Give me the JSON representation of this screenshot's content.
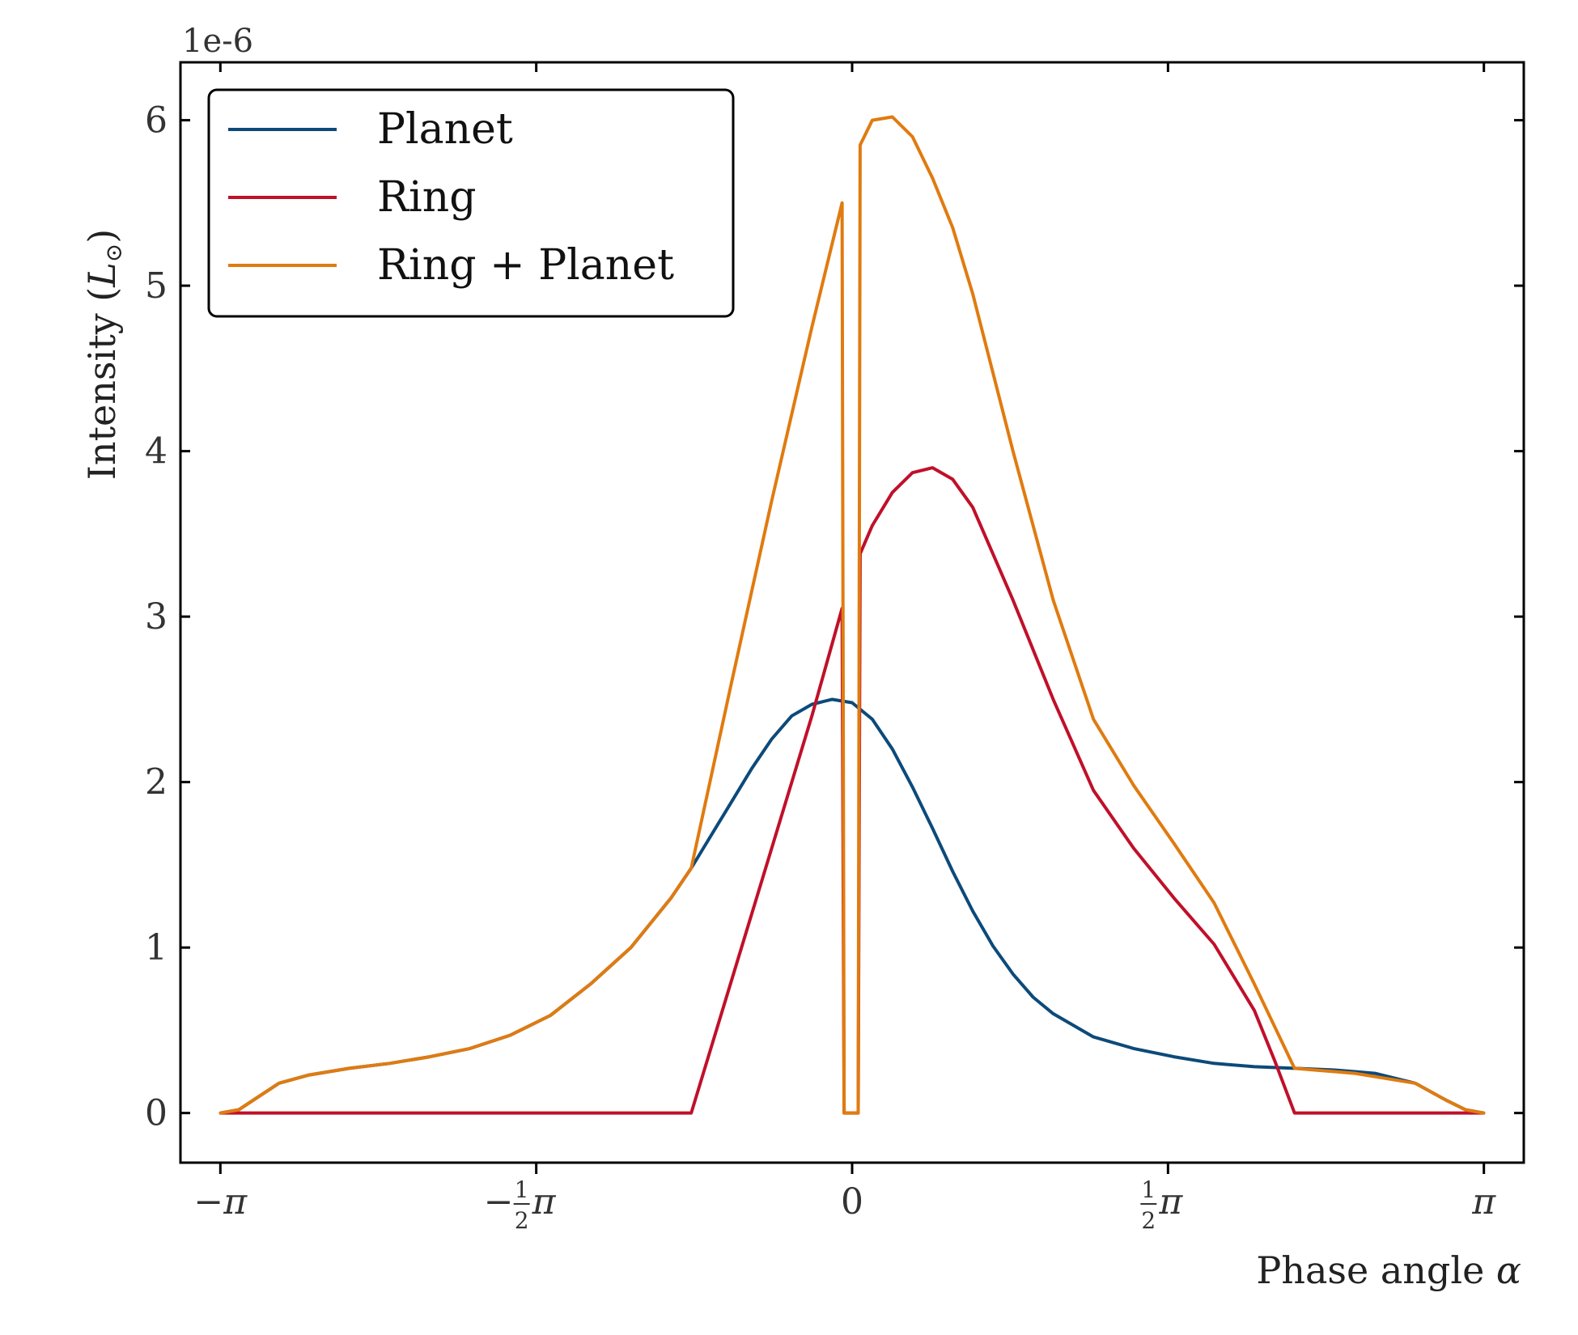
{
  "chart_data": {
    "type": "line",
    "xlabel": "Phase angle",
    "xlabel_symbol": "α",
    "ylabel": "Intensity",
    "ylabel_unit_symbol": "L",
    "ylabel_unit_subscript": "⊙",
    "y_offset_label": "1e-6",
    "xlim": [
      -3.34,
      3.34
    ],
    "ylim": [
      -0.3,
      6.35
    ],
    "grid": false,
    "legend_position": "top-left",
    "yticks": [
      0,
      1,
      2,
      3,
      4,
      5,
      6
    ],
    "xticks": [
      {
        "value": -3.14159,
        "sign": "−",
        "frac": "",
        "sym": "π"
      },
      {
        "value": -1.5708,
        "sign": "−",
        "frac": "1/2",
        "sym": "π"
      },
      {
        "value": 0,
        "sign": "",
        "frac": "",
        "sym": "0"
      },
      {
        "value": 1.5708,
        "sign": "",
        "frac": "1/2",
        "sym": "π"
      },
      {
        "value": 3.14159,
        "sign": "",
        "frac": "",
        "sym": "π"
      }
    ],
    "series": [
      {
        "name": "Planet",
        "color": "#0c4a7a",
        "x": [
          -3.14,
          -3.05,
          -2.95,
          -2.85,
          -2.7,
          -2.5,
          -2.3,
          -2.1,
          -1.9,
          -1.7,
          -1.5,
          -1.3,
          -1.1,
          -0.9,
          -0.8,
          -0.7,
          -0.6,
          -0.5,
          -0.4,
          -0.3,
          -0.2,
          -0.1,
          0,
          0.1,
          0.2,
          0.3,
          0.4,
          0.5,
          0.6,
          0.7,
          0.8,
          0.9,
          1.0,
          1.2,
          1.4,
          1.6,
          1.8,
          2.0,
          2.2,
          2.4,
          2.5,
          2.6,
          2.8,
          2.95,
          3.05,
          3.14
        ],
        "y": [
          0.0,
          0.02,
          0.1,
          0.18,
          0.23,
          0.27,
          0.3,
          0.34,
          0.39,
          0.47,
          0.59,
          0.78,
          1.0,
          1.3,
          1.48,
          1.68,
          1.88,
          2.08,
          2.26,
          2.4,
          2.47,
          2.5,
          2.48,
          2.38,
          2.2,
          1.97,
          1.72,
          1.46,
          1.22,
          1.01,
          0.84,
          0.7,
          0.6,
          0.46,
          0.39,
          0.34,
          0.3,
          0.28,
          0.27,
          0.26,
          0.25,
          0.24,
          0.18,
          0.08,
          0.02,
          0.0
        ]
      },
      {
        "name": "Ring",
        "color": "#c0102a",
        "x": [
          -3.14,
          -2.0,
          -1.0,
          -0.8,
          -0.6,
          -0.4,
          -0.2,
          -0.05,
          -0.04,
          0.03,
          0.04,
          0.1,
          0.2,
          0.3,
          0.4,
          0.5,
          0.6,
          0.8,
          1.0,
          1.2,
          1.4,
          1.6,
          1.8,
          2.0,
          2.1,
          2.2,
          2.3,
          2.4,
          2.5,
          2.6,
          2.8,
          3.14
        ],
        "y": [
          0,
          0,
          0,
          0.0,
          0.8,
          1.6,
          2.4,
          3.05,
          0,
          0,
          3.38,
          3.55,
          3.75,
          3.87,
          3.9,
          3.83,
          3.66,
          3.1,
          2.5,
          1.95,
          1.6,
          1.3,
          1.02,
          0.62,
          0.32,
          0.0,
          0,
          0,
          0,
          0,
          0,
          0
        ]
      },
      {
        "name": "Ring + Planet",
        "color": "#e07b10",
        "x": [
          -3.14,
          -3.05,
          -2.95,
          -2.85,
          -2.7,
          -2.5,
          -2.3,
          -2.1,
          -1.9,
          -1.7,
          -1.5,
          -1.3,
          -1.1,
          -0.9,
          -0.8,
          -0.6,
          -0.4,
          -0.2,
          -0.05,
          -0.04,
          0.03,
          0.04,
          0.1,
          0.2,
          0.3,
          0.4,
          0.5,
          0.6,
          0.8,
          1.0,
          1.2,
          1.4,
          1.6,
          1.8,
          2.0,
          2.2,
          2.3,
          2.4,
          2.5,
          2.6,
          2.8,
          2.95,
          3.05,
          3.14
        ],
        "y": [
          0.0,
          0.02,
          0.1,
          0.18,
          0.23,
          0.27,
          0.3,
          0.34,
          0.39,
          0.47,
          0.59,
          0.78,
          1.0,
          1.3,
          1.48,
          2.6,
          3.7,
          4.75,
          5.5,
          0,
          0,
          5.85,
          6.0,
          6.02,
          5.9,
          5.65,
          5.35,
          4.95,
          4.0,
          3.1,
          2.38,
          1.98,
          1.63,
          1.27,
          0.78,
          0.27,
          0.26,
          0.25,
          0.24,
          0.22,
          0.18,
          0.08,
          0.02,
          0.0
        ]
      }
    ]
  }
}
